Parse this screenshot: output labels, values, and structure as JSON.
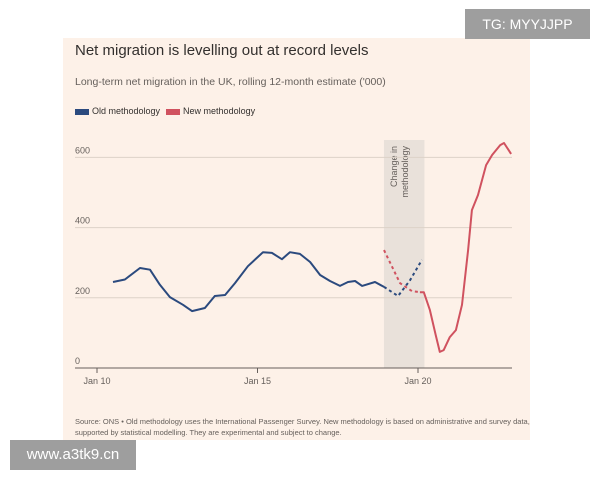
{
  "chart_data": {
    "type": "line",
    "title": "Net migration is levelling out at record levels",
    "subtitle": "Long-term net migration in the UK, rolling 12-month estimate ('000)",
    "ylim": [
      0,
      650
    ],
    "xlim": [
      2010,
      2022.9
    ],
    "yticks": [
      0,
      200,
      400,
      600
    ],
    "xticks": [
      {
        "value": 2010,
        "label": "Jan 10"
      },
      {
        "value": 2015,
        "label": "Jan 15"
      },
      {
        "value": 2020,
        "label": "Jan 20"
      }
    ],
    "grid": true,
    "legend": "top-left",
    "annotation": {
      "label": "Change in methodology",
      "from": 2018.94,
      "to": 2020.2
    },
    "series": [
      {
        "name": "Old methodology",
        "color": "#2b4a7e",
        "dashed_from": 2018.94,
        "points": [
          [
            2010.5,
            245
          ],
          [
            2010.87,
            252
          ],
          [
            2011.34,
            285
          ],
          [
            2011.65,
            280
          ],
          [
            2011.96,
            237
          ],
          [
            2012.27,
            202
          ],
          [
            2012.68,
            180
          ],
          [
            2012.96,
            162
          ],
          [
            2013.36,
            171
          ],
          [
            2013.67,
            205
          ],
          [
            2013.99,
            208
          ],
          [
            2014.3,
            242
          ],
          [
            2014.7,
            290
          ],
          [
            2015.17,
            330
          ],
          [
            2015.45,
            328
          ],
          [
            2015.76,
            310
          ],
          [
            2016.01,
            330
          ],
          [
            2016.32,
            325
          ],
          [
            2016.64,
            302
          ],
          [
            2016.95,
            265
          ],
          [
            2017.26,
            248
          ],
          [
            2017.57,
            234
          ],
          [
            2017.82,
            245
          ],
          [
            2018.04,
            248
          ],
          [
            2018.26,
            234
          ],
          [
            2018.66,
            245
          ],
          [
            2018.94,
            231
          ],
          [
            2019.38,
            205
          ],
          [
            2019.75,
            250
          ],
          [
            2020.12,
            308
          ]
        ]
      },
      {
        "name": "New methodology",
        "color": "#d0525f",
        "dashed_until": 2020.1,
        "points": [
          [
            2018.94,
            336
          ],
          [
            2019.44,
            242
          ],
          [
            2019.81,
            219
          ],
          [
            2020.06,
            216
          ],
          [
            2020.18,
            216
          ],
          [
            2020.37,
            165
          ],
          [
            2020.55,
            94
          ],
          [
            2020.68,
            46
          ],
          [
            2020.8,
            51
          ],
          [
            2020.99,
            88
          ],
          [
            2021.18,
            108
          ],
          [
            2021.37,
            180
          ],
          [
            2021.56,
            336
          ],
          [
            2021.68,
            450
          ],
          [
            2021.87,
            493
          ],
          [
            2022.12,
            578
          ],
          [
            2022.31,
            607
          ],
          [
            2022.56,
            635
          ],
          [
            2022.68,
            641
          ],
          [
            2022.9,
            610
          ]
        ]
      }
    ],
    "source": "Source: ONS • Old methodology uses the International Passenger Survey. New methodology is based on administrative and survey data, supported by statistical modelling. They are experimental and subject to change."
  },
  "watermarks": {
    "top": "TG: MYYJJPP",
    "bottom": "www.a3tk9.cn"
  },
  "colors": {
    "background": "#fdf1e8",
    "shade": "#e4ddd6"
  }
}
